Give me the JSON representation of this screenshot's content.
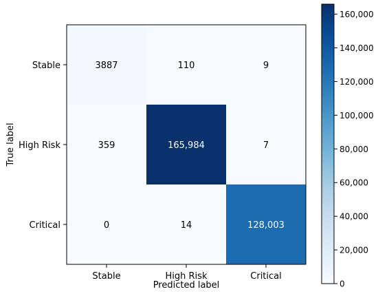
{
  "chart_data": {
    "type": "heatmap",
    "xlabel": "Predicted label",
    "ylabel": "True label",
    "x_categories": [
      "Stable",
      "High Risk",
      "Critical"
    ],
    "y_categories": [
      "Stable",
      "High Risk",
      "Critical"
    ],
    "matrix": [
      [
        3887,
        110,
        9
      ],
      [
        359,
        165984,
        7
      ],
      [
        0,
        14,
        128003
      ]
    ],
    "cell_labels": [
      [
        "3887",
        "110",
        "9"
      ],
      [
        "359",
        "165,984",
        "7"
      ],
      [
        "0",
        "14",
        "128,003"
      ]
    ],
    "colormap": "Blues",
    "colorbar": {
      "min": 0,
      "max": 165984,
      "ticks": [
        0,
        20000,
        40000,
        60000,
        80000,
        100000,
        120000,
        140000,
        160000
      ],
      "tick_labels": [
        "0",
        "20,000",
        "40,000",
        "60,000",
        "80,000",
        "100,000",
        "120,000",
        "140,000",
        "160,000"
      ]
    },
    "grid": false
  }
}
